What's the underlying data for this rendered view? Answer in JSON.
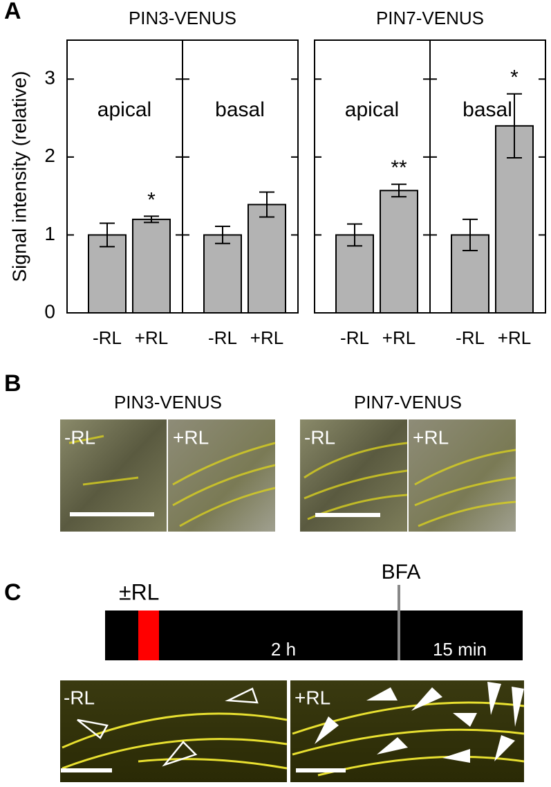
{
  "panel_labels": [
    "A",
    "B",
    "C"
  ],
  "chart_data": [
    {
      "type": "bar",
      "title": "PIN3-VENUS",
      "ylabel": "Signal intensity (relative)",
      "ylim": [
        0,
        3.5
      ],
      "yticks": [
        0,
        1,
        2,
        3
      ],
      "color": "#b3b3b3",
      "panels": [
        {
          "label": "apical",
          "categories": [
            "-RL",
            "+RL"
          ],
          "values": [
            1.0,
            1.2
          ],
          "errors": [
            0.15,
            0.04
          ],
          "annotations": [
            null,
            "*"
          ]
        },
        {
          "label": "basal",
          "categories": [
            "-RL",
            "+RL"
          ],
          "values": [
            1.0,
            1.39
          ],
          "errors": [
            0.11,
            0.16
          ],
          "annotations": [
            null,
            null
          ]
        }
      ]
    },
    {
      "type": "bar",
      "title": "PIN7-VENUS",
      "ylim": [
        0,
        3.5
      ],
      "yticks": [
        0,
        1,
        2,
        3
      ],
      "color": "#b3b3b3",
      "panels": [
        {
          "label": "apical",
          "categories": [
            "-RL",
            "+RL"
          ],
          "values": [
            1.0,
            1.57
          ],
          "errors": [
            0.14,
            0.08
          ],
          "annotations": [
            null,
            "**"
          ]
        },
        {
          "label": "basal",
          "categories": [
            "-RL",
            "+RL"
          ],
          "values": [
            1.0,
            2.4
          ],
          "errors": [
            0.2,
            0.41
          ],
          "annotations": [
            null,
            "*"
          ]
        }
      ]
    }
  ],
  "panel_b": [
    {
      "title": "PIN3-VENUS",
      "conditions": [
        "-RL",
        "+RL"
      ]
    },
    {
      "title": "PIN7-VENUS",
      "conditions": [
        "-RL",
        "+RL"
      ]
    }
  ],
  "panel_c": {
    "treatment": "±RL",
    "drug": "BFA",
    "durations": [
      "2 h",
      "15 min"
    ],
    "conditions": [
      "-RL",
      "+RL"
    ]
  }
}
